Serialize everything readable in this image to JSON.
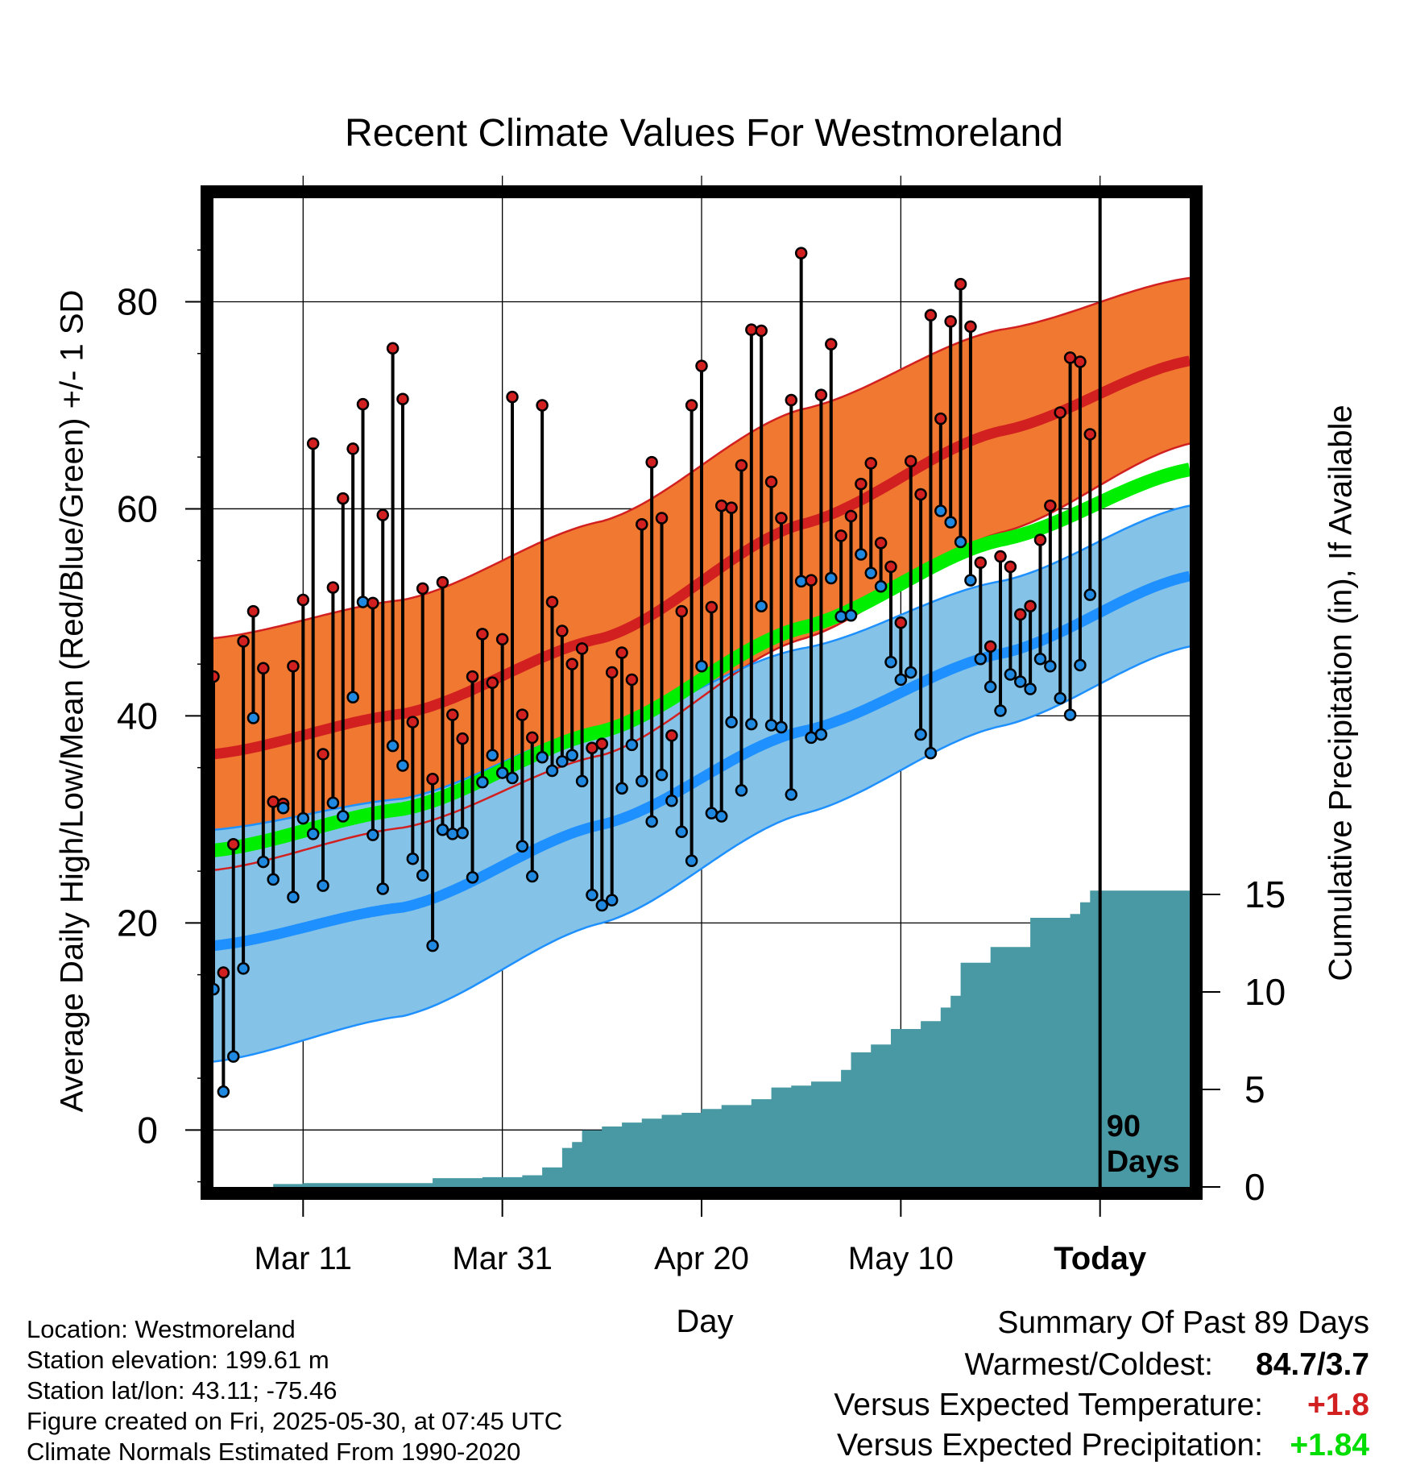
{
  "title": "Recent Climate Values For Westmoreland",
  "chart_data": {
    "type": "line",
    "title": "Recent Climate Values For Westmoreland",
    "xlabel": "Day",
    "ylabel": "Average Daily High/Low/Mean (Red/Blue/Green) +/- 1 SD",
    "y2label": "Cumulative Precipitation (in), If Available",
    "ylim": [
      -5.5,
      90
    ],
    "y_ticks": [
      0,
      20,
      40,
      60,
      80
    ],
    "y2lim": [
      0,
      15
    ],
    "y2_ticks": [
      0,
      5,
      10,
      15
    ],
    "x_range_days": [
      -89,
      9
    ],
    "x_tick_days": [
      -80,
      -60,
      -40,
      -20,
      0
    ],
    "x_tick_labels": [
      "Mar 11",
      "Mar 31",
      "Apr 20",
      "May 10",
      "Today"
    ],
    "today_marker_label": "90\nDays",
    "grid": true,
    "series_colors": {
      "high_band": "#f07830",
      "high_mean": "#d22020",
      "low_band": "#84c2e8",
      "low_mean": "#1e90ff",
      "mean": "#00ee00",
      "precip": "#4899a3",
      "high_marker": "#d22020",
      "low_marker": "#1f88e0"
    },
    "normals_days": [
      -89,
      -70,
      -50,
      -30,
      -10,
      9
    ],
    "normal_high": [
      36.3,
      40.2,
      47.5,
      58.5,
      67.5,
      74.3
    ],
    "normal_high_sd": [
      11.2,
      11.0,
      11.3,
      11.1,
      9.8,
      8.0
    ],
    "normal_low": [
      17.8,
      21.5,
      29.5,
      38.5,
      46.0,
      53.5
    ],
    "normal_low_sd": [
      11.2,
      10.5,
      9.5,
      8.0,
      7.0,
      6.8
    ],
    "normal_mean": [
      27.0,
      31.0,
      38.5,
      48.5,
      57.0,
      63.8
    ],
    "days": [
      -89,
      -88,
      -87,
      -86,
      -85,
      -84,
      -83,
      -82,
      -81,
      -80,
      -79,
      -78,
      -77,
      -76,
      -75,
      -74,
      -73,
      -72,
      -71,
      -70,
      -69,
      -68,
      -67,
      -66,
      -65,
      -64,
      -63,
      -62,
      -61,
      -60,
      -59,
      -58,
      -57,
      -56,
      -55,
      -54,
      -53,
      -52,
      -51,
      -50,
      -49,
      -48,
      -47,
      -46,
      -45,
      -44,
      -43,
      -42,
      -41,
      -40,
      -39,
      -38,
      -37,
      -36,
      -35,
      -34,
      -33,
      -32,
      -31,
      -30,
      -29,
      -28,
      -27,
      -26,
      -25,
      -24,
      -23,
      -22,
      -21,
      -20,
      -19,
      -18,
      -17,
      -16,
      -15,
      -14,
      -13,
      -12,
      -11,
      -10,
      -9,
      -8,
      -7,
      -6,
      -5,
      -4,
      -3,
      -2,
      -1
    ],
    "daily_high": [
      43.8,
      15.2,
      27.6,
      47.2,
      50.1,
      44.6,
      31.7,
      31.5,
      44.8,
      51.2,
      66.3,
      36.3,
      52.4,
      61.0,
      65.8,
      70.1,
      50.9,
      59.4,
      75.5,
      70.6,
      39.4,
      52.3,
      33.9,
      52.9,
      40.1,
      37.8,
      43.8,
      47.9,
      43.2,
      47.4,
      70.8,
      40.1,
      37.9,
      70.0,
      51.0,
      48.2,
      45.0,
      46.5,
      36.9,
      37.3,
      44.2,
      46.1,
      43.5,
      58.5,
      64.5,
      59.1,
      38.1,
      50.1,
      70.0,
      73.8,
      50.5,
      60.3,
      60.1,
      64.2,
      77.3,
      77.2,
      62.6,
      59.1,
      70.5,
      84.7,
      53.1,
      71.0,
      75.9,
      57.4,
      59.3,
      62.4,
      64.4,
      56.7,
      54.4,
      49.0,
      64.6,
      61.4,
      78.7,
      68.7,
      78.1,
      81.7,
      77.6,
      54.8,
      46.7,
      55.4,
      54.4,
      49.8,
      50.6,
      57.0,
      60.3,
      69.3,
      74.6,
      74.2,
      67.2
    ],
    "daily_low": [
      13.6,
      3.7,
      7.1,
      15.6,
      39.8,
      25.9,
      24.2,
      31.1,
      22.5,
      30.1,
      28.6,
      23.6,
      31.6,
      30.3,
      41.8,
      51.0,
      28.5,
      23.3,
      37.1,
      35.2,
      26.2,
      24.6,
      17.8,
      29.0,
      28.6,
      28.7,
      24.4,
      33.6,
      36.2,
      34.5,
      34.0,
      27.4,
      24.5,
      36.0,
      34.7,
      35.6,
      36.2,
      33.7,
      22.7,
      21.7,
      22.2,
      33.0,
      37.2,
      33.7,
      29.8,
      34.3,
      31.8,
      28.8,
      26.0,
      44.8,
      30.6,
      30.3,
      39.4,
      32.8,
      39.2,
      50.6,
      39.1,
      38.9,
      32.4,
      53.0,
      37.9,
      38.2,
      53.3,
      49.6,
      49.7,
      55.6,
      53.8,
      52.5,
      45.2,
      43.5,
      44.2,
      38.2,
      36.4,
      59.8,
      58.7,
      56.8,
      53.1,
      45.5,
      42.8,
      40.5,
      44.0,
      43.3,
      42.6,
      45.5,
      44.8,
      41.7,
      40.1,
      44.9,
      51.7
    ],
    "precip_days": [
      -89,
      -85,
      -83,
      -80,
      -70,
      -67,
      -62,
      -58,
      -56,
      -54,
      -53,
      -52,
      -50,
      -48,
      -46,
      -44,
      -42,
      -40,
      -38,
      -35,
      -33,
      -31,
      -29,
      -26,
      -25,
      -23,
      -21,
      -18,
      -16,
      -15,
      -14,
      -11,
      -8,
      -7,
      -3,
      -2,
      -1,
      0,
      9
    ],
    "precip_cum": [
      0.0,
      0.0,
      0.15,
      0.2,
      0.2,
      0.45,
      0.5,
      0.6,
      1.0,
      2.0,
      2.3,
      2.9,
      3.1,
      3.3,
      3.5,
      3.7,
      3.8,
      4.0,
      4.2,
      4.5,
      5.1,
      5.2,
      5.4,
      6.0,
      6.9,
      7.3,
      8.1,
      8.5,
      9.2,
      9.8,
      11.5,
      12.3,
      12.3,
      13.8,
      14.0,
      14.6,
      15.2,
      15.2,
      15.2
    ],
    "precip_y2_ref": {
      "values": [
        0,
        5,
        10,
        15
      ]
    }
  },
  "footer": {
    "location": "Location: Westmoreland",
    "elevation": "Station elevation: 199.61 m",
    "latlon": "Station lat/lon: 43.11; -75.46",
    "created": "Figure created on Fri, 2025-05-30, at 07:45 UTC",
    "normals": "Climate Normals Estimated From 1990-2020"
  },
  "summary": {
    "heading": "Summary Of Past 89 Days",
    "warm_label": "Warmest/Coldest:",
    "warm_value": "84.7/3.7",
    "temp_label": "Versus Expected Temperature:",
    "temp_value": "+1.8",
    "temp_color": "#d22020",
    "precip_label": "Versus Expected Precipitation:",
    "precip_value": "+1.84",
    "precip_color": "#00dd00"
  }
}
